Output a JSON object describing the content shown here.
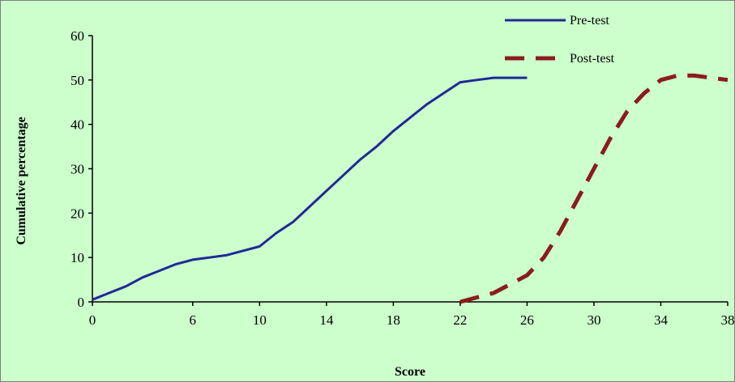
{
  "chart_data": {
    "type": "line",
    "title": "",
    "xlabel": "Score",
    "ylabel": "Cumulative percentage",
    "xlim": [
      0,
      38
    ],
    "ylim": [
      0,
      60
    ],
    "x_ticks": [
      "0",
      "6",
      "10",
      "14",
      "18",
      "22",
      "26",
      "30",
      "34",
      "38"
    ],
    "y_ticks": [
      "0",
      "10",
      "20",
      "30",
      "40",
      "50",
      "60"
    ],
    "grid": false,
    "legend_position": "top-right",
    "series": [
      {
        "name": "Pre-test",
        "color": "#1f2a96",
        "style": "solid",
        "x": [
          0,
          1,
          2,
          3,
          4,
          5,
          6,
          7,
          8,
          9,
          10,
          11,
          12,
          13,
          14,
          15,
          16,
          17,
          18,
          19,
          20,
          21,
          22,
          23,
          24,
          25,
          26
        ],
        "y": [
          0.5,
          2,
          3.5,
          5.5,
          7,
          8.5,
          9.5,
          10,
          10.5,
          11.5,
          12.5,
          15.5,
          18,
          21.5,
          25,
          28.5,
          32,
          35,
          38.5,
          41.5,
          44.5,
          47,
          49.5,
          50,
          50.5,
          50.5,
          50.5
        ]
      },
      {
        "name": "Post-test",
        "color": "#8b1c1c",
        "style": "dashed",
        "x": [
          22,
          23,
          24,
          25,
          26,
          27,
          28,
          29,
          30,
          31,
          32,
          33,
          34,
          35,
          36,
          37,
          38
        ],
        "y": [
          0,
          1,
          2,
          4,
          6,
          10,
          16,
          23,
          30,
          37,
          43,
          47,
          50,
          51,
          51,
          50.5,
          50
        ]
      }
    ]
  }
}
